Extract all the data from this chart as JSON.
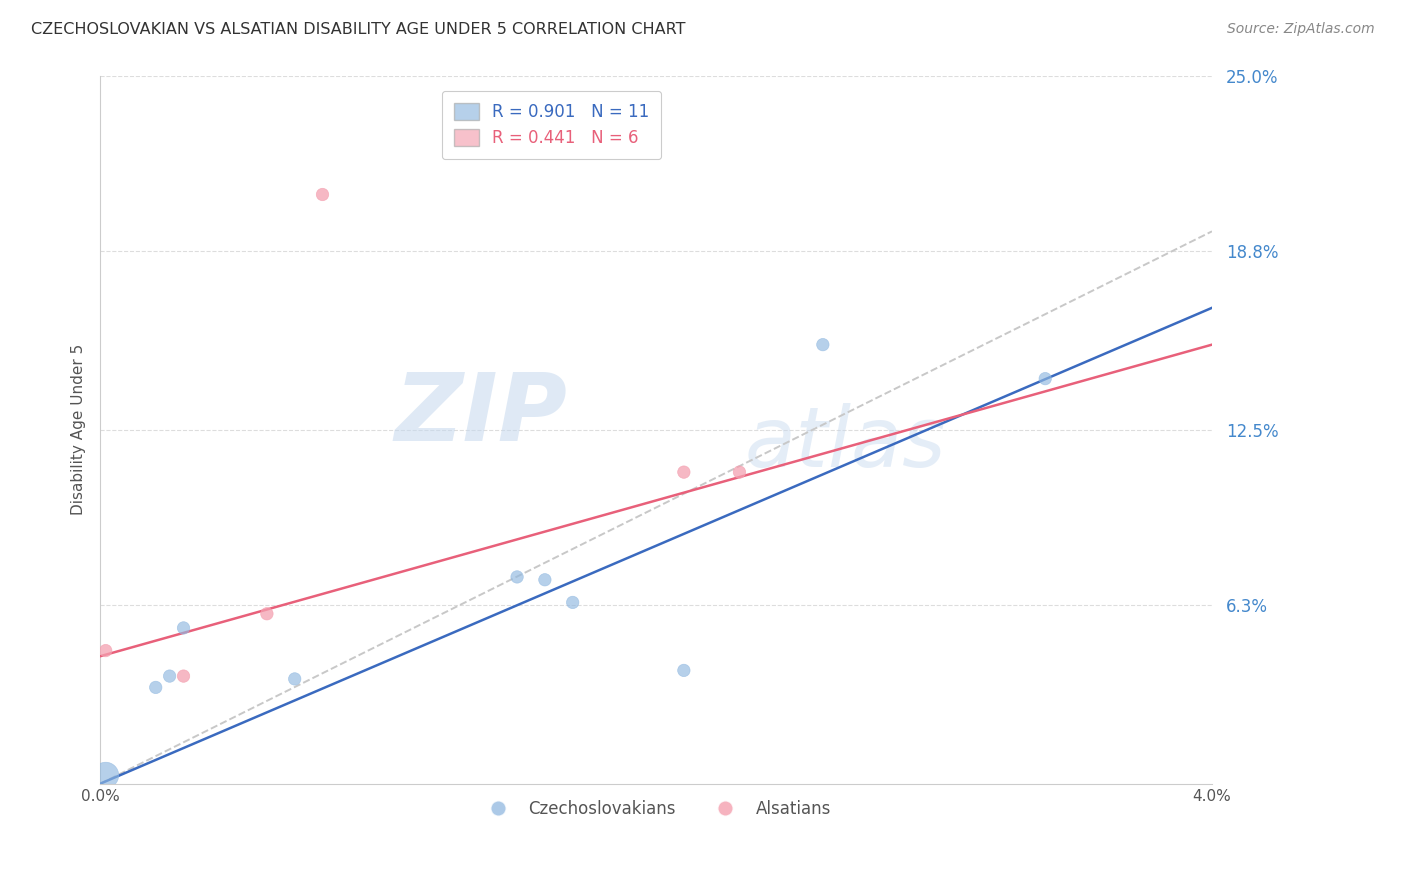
{
  "title": "CZECHOSLOVAKIAN VS ALSATIAN DISABILITY AGE UNDER 5 CORRELATION CHART",
  "source": "Source: ZipAtlas.com",
  "ylabel": "Disability Age Under 5",
  "xlim": [
    0.0,
    0.04
  ],
  "ylim": [
    0.0,
    0.25
  ],
  "xtick_labels": [
    "0.0%",
    "4.0%"
  ],
  "ytick_labels": [
    "6.3%",
    "12.5%",
    "18.8%",
    "25.0%"
  ],
  "ytick_positions": [
    0.063,
    0.125,
    0.188,
    0.25
  ],
  "czech_color": "#90b8e0",
  "alsatian_color": "#f4a0b0",
  "czech_line_color": "#3a6abf",
  "alsatian_line_color": "#e8607a",
  "dashed_line_color": "#c8c8c8",
  "watermark_top": "ZIP",
  "watermark_bottom": "atlas",
  "czech_scatter_x": [
    0.0002,
    0.002,
    0.0025,
    0.003,
    0.007,
    0.015,
    0.016,
    0.017,
    0.021,
    0.026,
    0.034
  ],
  "czech_scatter_y": [
    0.003,
    0.034,
    0.038,
    0.055,
    0.037,
    0.073,
    0.072,
    0.064,
    0.04,
    0.155,
    0.143
  ],
  "czech_scatter_sizes": [
    350,
    80,
    80,
    80,
    80,
    80,
    80,
    80,
    80,
    80,
    80
  ],
  "alsatian_scatter_x": [
    0.0002,
    0.003,
    0.006,
    0.008,
    0.021,
    0.023
  ],
  "alsatian_scatter_y": [
    0.047,
    0.038,
    0.06,
    0.208,
    0.11,
    0.11
  ],
  "alsatian_scatter_sizes": [
    80,
    80,
    80,
    80,
    80,
    80
  ],
  "czech_line_x": [
    0.0,
    0.04
  ],
  "czech_line_y": [
    0.0,
    0.168
  ],
  "alsatian_line_x": [
    0.0,
    0.04
  ],
  "alsatian_line_y": [
    0.045,
    0.155
  ],
  "dashed_line_x": [
    0.0,
    0.04
  ],
  "dashed_line_y": [
    0.0,
    0.195
  ],
  "legend1_label": "R = 0.901   N = 11",
  "legend2_label": "R = 0.441   N = 6",
  "bottom_legend1": "Czechoslovakians",
  "bottom_legend2": "Alsatians",
  "grid_color": "#dddddd",
  "spine_color": "#cccccc",
  "text_color": "#555555",
  "title_color": "#333333",
  "source_color": "#888888",
  "yticklabel_color": "#4488cc"
}
